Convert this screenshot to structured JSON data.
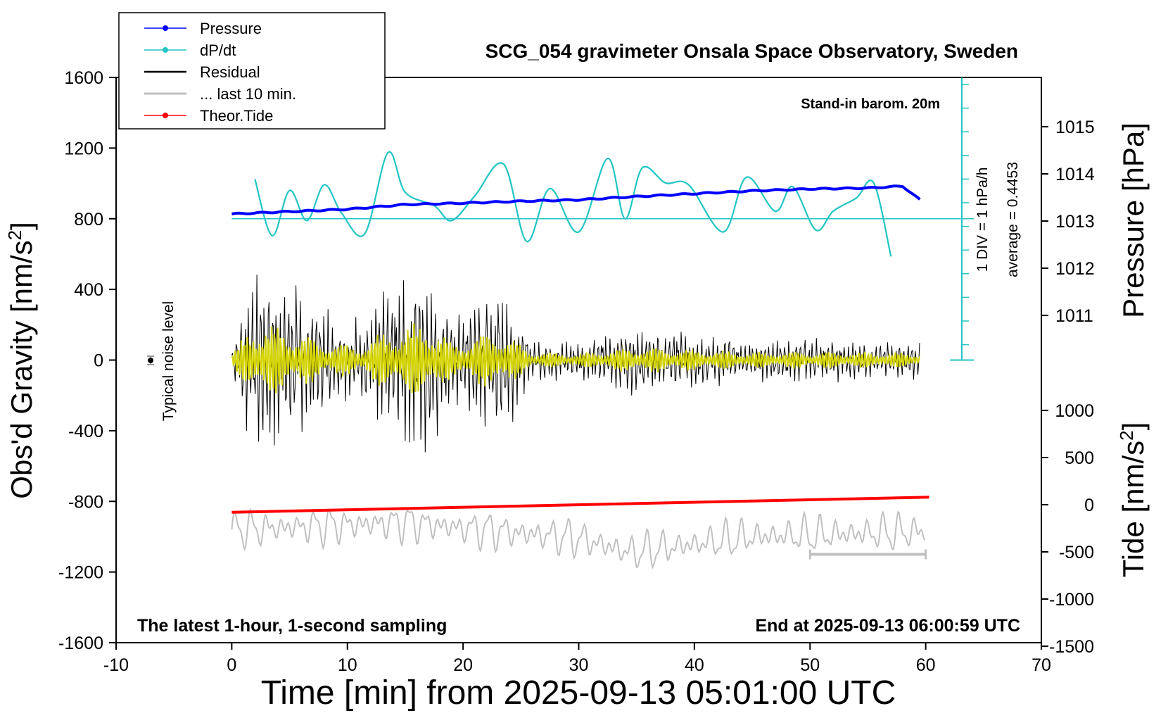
{
  "chart_data": {
    "type": "line",
    "title": "SCG_054 gravimeter Onsala Space Observatory, Sweden",
    "xlabel": "Time [min] from 2025-09-13 05:01:00 UTC",
    "xlim": [
      -10,
      70
    ],
    "xticks": [
      -10,
      0,
      10,
      20,
      30,
      40,
      50,
      60,
      70
    ],
    "ylabel_left": "Obs'd Gravity [nm/s",
    "ylabel_left_sup": "2",
    "ylabel_left_close": "]",
    "ylim_left": [
      -1600,
      1600
    ],
    "yticks_left": [
      1600,
      1200,
      800,
      400,
      0,
      -400,
      -800,
      -1200,
      -1600
    ],
    "ylabel_pressure": "Pressure [hPa]",
    "pressure_ticks": [
      1015,
      1014,
      1013,
      1012,
      1011
    ],
    "ylabel_tide": "Tide [nm/s",
    "ylabel_tide_sup": "2",
    "ylabel_tide_close": "]",
    "tide_ticks": [
      1000,
      500,
      0,
      -500,
      -1000,
      -1500
    ],
    "legend": [
      {
        "label": "Pressure",
        "color": "#0000ff",
        "marker": true
      },
      {
        "label": "dP/dt",
        "color": "#22c4c4",
        "marker": true
      },
      {
        "label": "Residual",
        "color": "#000000",
        "marker": false
      },
      {
        "label": "... last 10 min.",
        "color": "#c0c0c0",
        "marker": false
      },
      {
        "label": "Theor.Tide",
        "color": "#ff0000",
        "marker": true
      }
    ],
    "annotations": {
      "stand_in": "Stand-in barom. 20m",
      "div_note": "1 DIV = 1 hPa/h",
      "average_note": "average = 0.4453",
      "noise_label": "Typical noise level",
      "latest": "The latest 1-hour, 1-second sampling",
      "end_at": "End at 2025-09-13 06:00:59 UTC"
    },
    "series": [
      {
        "name": "Pressure",
        "unit": "hPa",
        "color": "#0000ff",
        "x": [
          0,
          5,
          10,
          15,
          20,
          25,
          30,
          35,
          40,
          45,
          50,
          55,
          58,
          59.5
        ],
        "y": [
          1013.15,
          1013.2,
          1013.25,
          1013.35,
          1013.38,
          1013.42,
          1013.45,
          1013.52,
          1013.58,
          1013.64,
          1013.68,
          1013.7,
          1013.74,
          1013.45
        ]
      },
      {
        "name": "dP/dt",
        "unit": "hPa/h (1 DIV = 1)",
        "color": "#22c4c4",
        "baseline_gravity": 800,
        "x": [
          2,
          3.5,
          5,
          6.5,
          8,
          9.5,
          11.5,
          13.5,
          15,
          17.5,
          19,
          21,
          23.5,
          25.5,
          27.5,
          30,
          32.5,
          34,
          35.5,
          37.5,
          39.5,
          42.5,
          44.5,
          47,
          48.5,
          50.5,
          52,
          54,
          55.5,
          57
        ],
        "y": [
          1.05,
          -0.45,
          0.75,
          -0.05,
          0.9,
          0.15,
          -0.4,
          1.75,
          0.7,
          0.35,
          -0.05,
          0.6,
          1.45,
          -0.6,
          0.8,
          -0.35,
          1.6,
          0.0,
          1.35,
          0.95,
          0.9,
          -0.35,
          1.1,
          0.2,
          0.85,
          -0.3,
          0.2,
          0.55,
          0.95,
          -1.0
        ]
      },
      {
        "name": "Residual",
        "unit": "nm/s2",
        "color": "#000000",
        "x": [
          0,
          2,
          5,
          8,
          11,
          13,
          16,
          17,
          19,
          23,
          26,
          30,
          35,
          40,
          45,
          50,
          55,
          59.5
        ],
        "envelope": [
          80,
          600,
          460,
          280,
          220,
          420,
          560,
          600,
          260,
          460,
          120,
          100,
          200,
          160,
          120,
          130,
          120,
          110
        ]
      },
      {
        "name": "... last 10 min.",
        "unit": "nm/s2",
        "color": "#c0c0c0",
        "x_start": 50,
        "x_end": 60,
        "level": -1100,
        "x": [
          0,
          15,
          30,
          34.5,
          45,
          60
        ],
        "y": [
          -960,
          -920,
          -1010,
          -1090,
          -1000,
          -970
        ]
      },
      {
        "name": "Theor.Tide",
        "unit": "nm/s2",
        "color": "#ff0000",
        "x": [
          0,
          60.3
        ],
        "y": [
          -80,
          80
        ]
      }
    ]
  }
}
